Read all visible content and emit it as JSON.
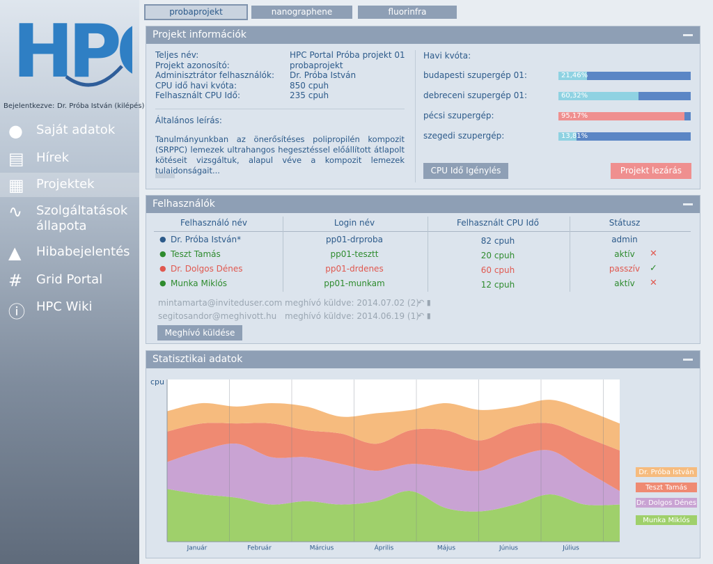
{
  "tabs": [
    "probaprojekt",
    "nanographene",
    "fluorinfra"
  ],
  "sidebar": {
    "logo": "HPC",
    "login_label": "Bejelentkezve:",
    "user": "Dr. Próba István (kilépés)",
    "menu": [
      "Saját adatok",
      "Hírek",
      "Projektek",
      "Szolgáltatások állapota",
      "Hibabejelentés",
      "Grid Portal",
      "HPC Wiki"
    ]
  },
  "project": {
    "title": "Projekt információk",
    "fields": [
      {
        "label": "Teljes név:",
        "value": "HPC Portal Próba projekt 01"
      },
      {
        "label": "Projekt azonosító:",
        "value": "probaprojekt"
      },
      {
        "label": "Adminisztrátor felhasználók:",
        "value": "Dr. Próba István"
      },
      {
        "label": "CPU idő havi kvóta:",
        "value": "850 cpuh"
      },
      {
        "label": "Felhasznált CPU Idő:",
        "value": "235 cpuh"
      }
    ],
    "desc_title": "Általános leírás:",
    "desc": "Tanulmányunkban az önerősítéses polipropilén kompozit (SRPPC) lemezek ultrahangos hegesztéssel előállított átlapolt kötéseit vizsgáltuk, alapul véve a kompozit lemezek tulajdonságait...",
    "quota_title": "Havi kvóta:",
    "quotas": [
      {
        "name": "budapesti szupergép 01:",
        "value": 21.46,
        "label": "21,46%"
      },
      {
        "name": "debreceni szupergép 01:",
        "value": 60.32,
        "label": "60,32%"
      },
      {
        "name": "pécsi szupergép:",
        "value": 95.17,
        "label": "95,17%"
      },
      {
        "name": "szegedi szupergép:",
        "value": 13.81,
        "label": "13,81%"
      }
    ],
    "btn_request": "CPU Idő Igénylés",
    "btn_close": "Projekt lezárás"
  },
  "users": {
    "title": "Felhasználók",
    "headers": [
      "Felhasználó név",
      "Login név",
      "Felhasznált CPU Idő",
      "Státusz"
    ],
    "rows": [
      [
        "Dr. Próba István*",
        "pp01-drproba",
        "82 cpuh",
        "admin"
      ],
      [
        "Teszt Tamás",
        "pp01-tesztt",
        "20 cpuh",
        "aktív"
      ],
      [
        "Dr. Dolgos Dénes",
        "pp01-drdenes",
        "60 cpuh",
        "passzív"
      ],
      [
        "Munka Miklós",
        "pp01-munkam",
        "12 cpuh",
        "aktív"
      ]
    ],
    "invites": [
      [
        "mintamarta@inviteduser.com",
        "meghívó küldve: 2014.07.02 (2)"
      ],
      [
        "segitosandor@meghivott.hu",
        "meghívó küldve: 2014.06.19 (1)"
      ]
    ],
    "btn_invite": "Meghívó küldése"
  },
  "stats": {
    "title": "Statisztikai adatok"
  },
  "chart_data": {
    "type": "stacked-area",
    "ylabel": "cpu",
    "months": [
      "Január",
      "Február",
      "Március",
      "Április",
      "Május",
      "Június",
      "Július"
    ],
    "ylim": [
      0,
      240
    ],
    "series": [
      {
        "name": "Dr. Próba István",
        "color": "#f6bb7e",
        "values": [
          30,
          30,
          25,
          30,
          35,
          25,
          45,
          30,
          40,
          45,
          30,
          35,
          40,
          40
        ]
      },
      {
        "name": "Teszt Tamás",
        "color": "#ef8a72",
        "values": [
          45,
          40,
          30,
          50,
          40,
          45,
          40,
          50,
          55,
          45,
          45,
          40,
          50,
          60
        ]
      },
      {
        "name": "Dr. Dolgos Dénes",
        "color": "#c9a3d3",
        "values": [
          40,
          65,
          80,
          70,
          65,
          60,
          45,
          40,
          60,
          60,
          70,
          65,
          50,
          20
        ]
      },
      {
        "name": "Munka Miklós",
        "color": "#9fd06b",
        "values": [
          78,
          70,
          65,
          55,
          60,
          55,
          60,
          75,
          50,
          45,
          55,
          70,
          55,
          55
        ]
      }
    ]
  }
}
